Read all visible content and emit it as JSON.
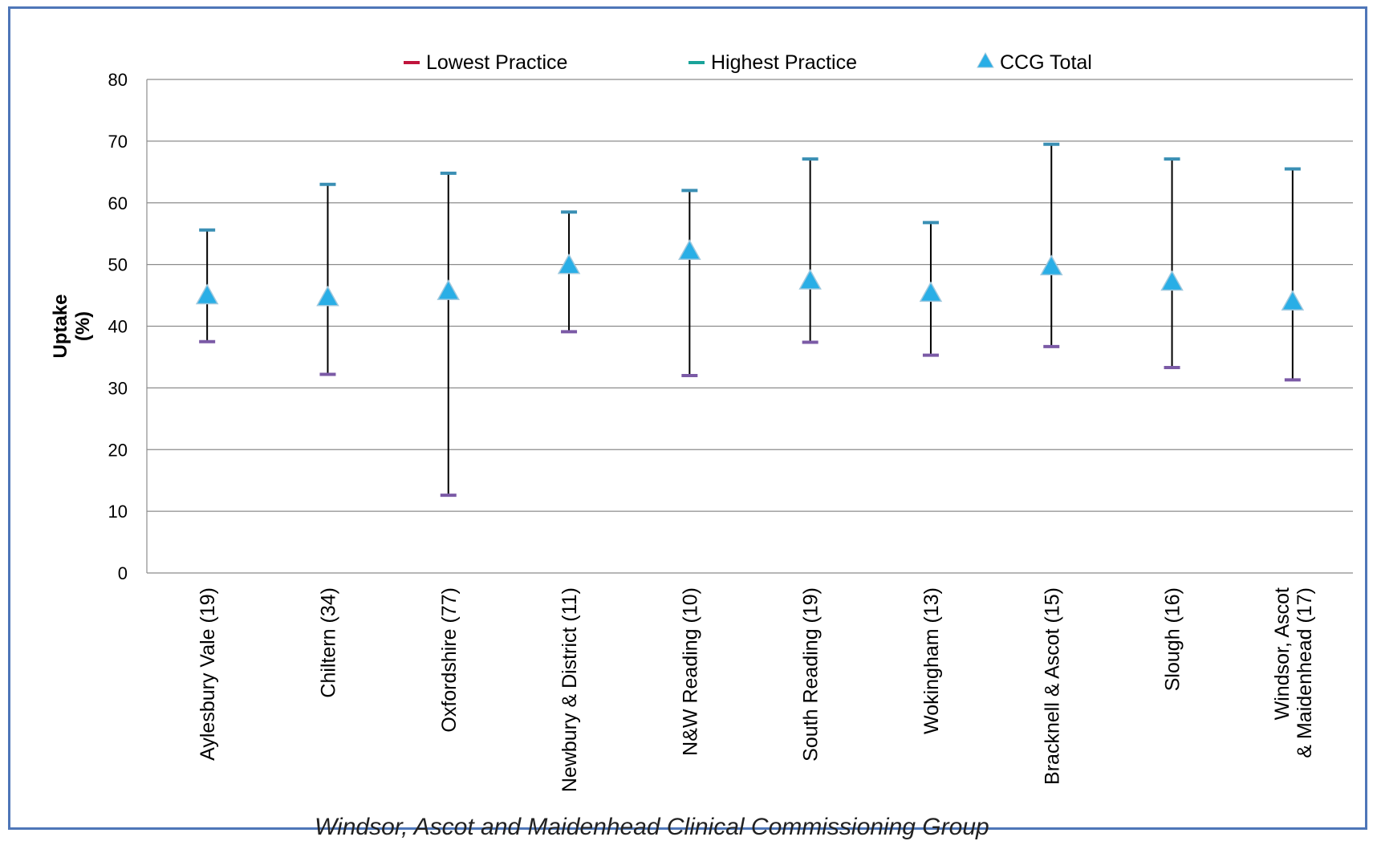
{
  "chart_data": {
    "type": "scatter",
    "title": "",
    "ylabel": "Uptake",
    "ylabel_unit": "(%)",
    "ylim": [
      0,
      80
    ],
    "yticks": [
      0,
      10,
      20,
      30,
      40,
      50,
      60,
      70,
      80
    ],
    "grid": true,
    "legend_position": "top",
    "categories": [
      [
        "Aylesbury Vale (19)"
      ],
      [
        "Chiltern (34)"
      ],
      [
        "Oxfordshire (77)"
      ],
      [
        "Newbury & District (11)"
      ],
      [
        "N&W Reading (10)"
      ],
      [
        "South Reading (19)"
      ],
      [
        "Wokingham (13)"
      ],
      [
        "Bracknell & Ascot (15)"
      ],
      [
        "Slough (16)"
      ],
      [
        "Windsor, Ascot",
        "& Maidenhead (17)"
      ]
    ],
    "series": [
      {
        "name": "Lowest Practice",
        "marker": "dash",
        "color": "#c0143c",
        "draw_color": "#7b5aa6",
        "values": [
          37.5,
          32.2,
          12.6,
          39.1,
          32.0,
          37.4,
          35.3,
          36.7,
          33.3,
          31.3
        ]
      },
      {
        "name": "Highest Practice",
        "marker": "dash",
        "color": "#1aa39a",
        "draw_color": "#3a8fb4",
        "values": [
          55.6,
          63.0,
          64.8,
          58.5,
          62.0,
          67.1,
          56.8,
          69.5,
          67.1,
          65.5
        ]
      },
      {
        "name": "CCG Total",
        "marker": "triangle",
        "color": "#29aee6",
        "values": [
          45.0,
          44.7,
          45.7,
          49.9,
          52.2,
          47.4,
          45.4,
          49.7,
          47.2,
          44.0
        ]
      }
    ]
  },
  "footer": {
    "text": "Windsor, Ascot and Maidenhead Clinical Commissioning Group"
  }
}
